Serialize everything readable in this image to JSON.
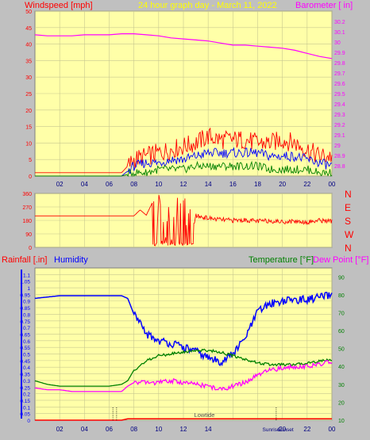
{
  "header": {
    "left_label": "Windspeed [mph]",
    "center_label": "24 hour graph day - March 11, 2022",
    "right_label": "Barometer [ in]"
  },
  "colors": {
    "plot_bg": "#ffffa8",
    "outer_bg": "#c0c0c0",
    "red": "#ff0000",
    "blue": "#0000ff",
    "green": "#008000",
    "magenta": "#ff00ff",
    "center_title": "#ffff00"
  },
  "chart_data": [
    {
      "type": "line",
      "name": "wind-barometer",
      "x_tick_labels": [
        "02",
        "04",
        "06",
        "08",
        "10",
        "12",
        "14",
        "16",
        "18",
        "20",
        "22",
        "00"
      ],
      "left_axis": {
        "label": "Windspeed [mph]",
        "ylim": [
          0,
          50
        ],
        "ticks": [
          "0",
          "5",
          "10",
          "15",
          "20",
          "25",
          "30",
          "35",
          "40",
          "45",
          "50"
        ]
      },
      "right_axis": {
        "label": "Barometer [ in]",
        "ylim": [
          28.7,
          30.3
        ],
        "ticks": [
          "28.8",
          "28.9",
          "29",
          "29.1",
          "29.2",
          "29.3",
          "29.4",
          "29.5",
          "29.6",
          "29.7",
          "29.8",
          "29.9",
          "30",
          "30.1",
          "30.2"
        ]
      },
      "hours": [
        0,
        1,
        2,
        3,
        4,
        5,
        6,
        7,
        7.5,
        8,
        9,
        10,
        11,
        12,
        13,
        14,
        15,
        16,
        17,
        18,
        19,
        20,
        21,
        22,
        23,
        24
      ],
      "gust_mph": [
        1,
        1,
        1,
        1,
        1,
        1,
        1,
        1,
        3,
        5,
        6,
        7,
        8,
        9,
        10,
        12,
        11,
        11,
        11,
        10,
        10,
        11,
        10,
        8,
        6,
        6
      ],
      "avg_mph": [
        0,
        0,
        0,
        0,
        0,
        0,
        0,
        0,
        1.5,
        3,
        4,
        4,
        5,
        5,
        6,
        7,
        7,
        7,
        7,
        7,
        6,
        6,
        6,
        5,
        4,
        3
      ],
      "low_mph": [
        0,
        0,
        0,
        0,
        0,
        0,
        0,
        0,
        0.5,
        1,
        1,
        2,
        2,
        2,
        3,
        3,
        3,
        3,
        3,
        3,
        2,
        2,
        2,
        2,
        1,
        1
      ],
      "barometer_in": [
        30.07,
        30.06,
        30.06,
        30.06,
        30.07,
        30.07,
        30.07,
        30.08,
        30.08,
        30.08,
        30.07,
        30.06,
        30.04,
        30.03,
        30.02,
        30.01,
        29.99,
        29.97,
        29.97,
        29.96,
        29.95,
        29.94,
        29.92,
        29.89,
        29.86,
        29.84
      ]
    },
    {
      "type": "line",
      "name": "wind-direction",
      "left_ticks": [
        "0",
        "90",
        "180",
        "270",
        "360"
      ],
      "right_labels": [
        "N",
        "W",
        "S",
        "E",
        "N"
      ],
      "ylim": [
        0,
        360
      ],
      "hours": [
        0,
        1,
        2,
        3,
        4,
        5,
        6,
        7,
        8,
        8.5,
        9,
        9.5,
        10,
        10.5,
        11,
        11.5,
        12,
        12.5,
        13,
        14,
        15,
        16,
        17,
        18,
        19,
        20,
        21,
        22,
        23,
        24
      ],
      "direction_deg": [
        210,
        210,
        210,
        210,
        210,
        210,
        210,
        210,
        210,
        250,
        215,
        300,
        160,
        60,
        320,
        20,
        330,
        40,
        210,
        195,
        185,
        180,
        182,
        175,
        178,
        170,
        175,
        168,
        180,
        175
      ]
    },
    {
      "type": "line",
      "name": "rain-humidity-temp",
      "x_tick_labels": [
        "02",
        "04",
        "06",
        "08",
        "10",
        "12",
        "14",
        "16",
        "18",
        "20",
        "22",
        "00"
      ],
      "left_header": "Rainfall [.in]",
      "left_header2": "Humidity",
      "right_header": "Temperature [°F]",
      "right_header2": "Dew Point [°F]",
      "annotations": [
        "Lowtide",
        "Sunrise",
        "Sunset"
      ],
      "left_ticks": [
        "0",
        "0.05",
        "0.1",
        "0.15",
        "0.2",
        "0.25",
        "0.3",
        "0.35",
        "0.4",
        "0.45",
        "0.5",
        "0.55",
        "0.6",
        "0.65",
        "0.7",
        "0.75",
        "0.8",
        "0.85",
        "0.9",
        "0.95",
        "1",
        "1.05",
        "1.1"
      ],
      "left_ylim": [
        0,
        1.15
      ],
      "right_ticks": [
        "10",
        "20",
        "30",
        "40",
        "50",
        "60",
        "70",
        "80",
        "90"
      ],
      "right_ylim": [
        10,
        95
      ],
      "hours": [
        0,
        1,
        2,
        3,
        4,
        5,
        6,
        7,
        7.5,
        8,
        9,
        10,
        11,
        12,
        13,
        14,
        15,
        16,
        17,
        18,
        19,
        20,
        21,
        22,
        23,
        24
      ],
      "humidity_pct": [
        92,
        93,
        94,
        94,
        94,
        94,
        94,
        94,
        92,
        80,
        65,
        60,
        58,
        55,
        52,
        47,
        44,
        50,
        62,
        82,
        88,
        90,
        91,
        91,
        93,
        94
      ],
      "temperature_f": [
        32,
        30,
        29,
        29,
        29,
        29,
        29,
        30,
        32,
        38,
        43,
        46,
        47,
        48,
        49,
        49,
        48,
        46,
        44,
        42,
        41,
        41,
        41,
        42,
        43,
        44
      ],
      "dewpoint_f": [
        28,
        27,
        27,
        26,
        26,
        26,
        26,
        26,
        29,
        31,
        31,
        31,
        32,
        31,
        30,
        29,
        27,
        29,
        31,
        35,
        38,
        39,
        40,
        40,
        41,
        43
      ],
      "rainfall_in": [
        0,
        0,
        0,
        0,
        0,
        0,
        0,
        0,
        0.01,
        0.01,
        0.01,
        0.01,
        0.01,
        0.01,
        0.01,
        0.01,
        0.01,
        0.01,
        0.01,
        0.01,
        0.01,
        0.01,
        0.01,
        0.01,
        0.01,
        0.01
      ]
    }
  ]
}
